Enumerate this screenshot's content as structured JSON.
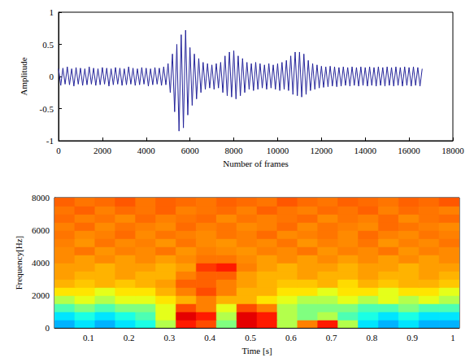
{
  "chart_data": [
    {
      "type": "line",
      "x_label": "Number of frames",
      "y_label": "Amplitude",
      "color": "#24249a",
      "xlim": [
        0,
        18000
      ],
      "xticks": [
        0,
        2000,
        4000,
        6000,
        8000,
        10000,
        12000,
        14000,
        16000,
        18000
      ],
      "ylim": [
        -1,
        1
      ],
      "yticks": [
        -1,
        -0.5,
        0,
        0.5,
        1
      ],
      "x": [
        0,
        100,
        200,
        300,
        400,
        500,
        600,
        700,
        800,
        900,
        1000,
        1100,
        1200,
        1300,
        1400,
        1500,
        1600,
        1700,
        1800,
        1900,
        2000,
        2100,
        2200,
        2300,
        2400,
        2500,
        2600,
        2700,
        2800,
        2900,
        3000,
        3100,
        3200,
        3300,
        3400,
        3500,
        3600,
        3700,
        3800,
        3900,
        4000,
        4100,
        4200,
        4300,
        4400,
        4500,
        4600,
        4700,
        4800,
        4900,
        5000,
        5100,
        5200,
        5300,
        5400,
        5500,
        5600,
        5700,
        5800,
        5900,
        6000,
        6100,
        6200,
        6300,
        6400,
        6500,
        6600,
        6700,
        6800,
        6900,
        7000,
        7100,
        7200,
        7300,
        7400,
        7500,
        7600,
        7700,
        7800,
        7900,
        8000,
        8100,
        8200,
        8300,
        8400,
        8500,
        8600,
        8700,
        8800,
        8900,
        9000,
        9100,
        9200,
        9300,
        9400,
        9500,
        9600,
        9700,
        9800,
        9900,
        10000,
        10100,
        10200,
        10300,
        10400,
        10500,
        10600,
        10700,
        10800,
        10900,
        11000,
        11100,
        11200,
        11300,
        11400,
        11500,
        11600,
        11700,
        11800,
        11900,
        12000,
        12100,
        12200,
        12300,
        12400,
        12500,
        12600,
        12700,
        12800,
        12900,
        13000,
        13100,
        13200,
        13300,
        13400,
        13500,
        13600,
        13700,
        13800,
        13900,
        14000,
        14100,
        14200,
        14300,
        14400,
        14500,
        14600,
        14700,
        14800,
        14900,
        15000,
        15100,
        15200,
        15300,
        15400,
        15500,
        15600,
        15700,
        15800,
        15900,
        16000,
        16100,
        16200,
        16300,
        16400,
        16500,
        16600
      ],
      "values": [
        0.12,
        -0.14,
        0.13,
        -0.12,
        0.15,
        -0.13,
        0.12,
        -0.15,
        0.14,
        -0.12,
        0.13,
        -0.14,
        0.12,
        -0.13,
        0.15,
        -0.12,
        0.13,
        -0.14,
        0.12,
        -0.13,
        0.14,
        -0.12,
        0.13,
        -0.15,
        0.12,
        -0.13,
        0.14,
        -0.12,
        0.13,
        -0.14,
        0.12,
        -0.13,
        0.15,
        -0.12,
        0.13,
        -0.14,
        0.12,
        -0.13,
        0.14,
        -0.12,
        0.13,
        -0.15,
        0.12,
        -0.13,
        0.14,
        -0.12,
        0.13,
        -0.14,
        0.15,
        -0.13,
        0.2,
        -0.25,
        0.35,
        -0.55,
        0.5,
        -0.85,
        0.65,
        -0.8,
        0.72,
        -0.6,
        0.45,
        -0.45,
        0.35,
        -0.35,
        0.28,
        -0.25,
        0.22,
        -0.2,
        0.2,
        -0.18,
        0.18,
        -0.2,
        0.2,
        -0.18,
        0.22,
        -0.25,
        0.32,
        -0.3,
        0.38,
        -0.32,
        0.4,
        -0.35,
        0.32,
        -0.3,
        0.28,
        -0.25,
        0.22,
        -0.2,
        0.2,
        -0.22,
        0.22,
        -0.2,
        0.2,
        -0.18,
        0.18,
        -0.2,
        0.2,
        -0.18,
        0.18,
        -0.2,
        0.2,
        -0.22,
        0.22,
        -0.2,
        0.25,
        -0.22,
        0.32,
        -0.28,
        0.38,
        -0.3,
        0.38,
        -0.32,
        0.35,
        -0.28,
        0.25,
        -0.22,
        0.2,
        -0.2,
        0.18,
        -0.18,
        0.16,
        -0.17,
        0.15,
        -0.16,
        0.16,
        -0.15,
        0.15,
        -0.16,
        0.14,
        -0.15,
        0.15,
        -0.14,
        0.14,
        -0.15,
        0.15,
        -0.14,
        0.14,
        -0.15,
        0.15,
        -0.14,
        0.14,
        -0.15,
        0.15,
        -0.14,
        0.14,
        -0.15,
        0.15,
        -0.14,
        0.14,
        -0.15,
        0.15,
        -0.14,
        0.14,
        -0.15,
        0.15,
        -0.14,
        0.14,
        -0.15,
        0.15,
        -0.14,
        0.14,
        -0.15,
        0.15,
        -0.14,
        0.14,
        -0.15,
        0.12
      ]
    },
    {
      "type": "heatmap",
      "x_label": "Time [s]",
      "y_label": "Frequency[Hz]",
      "color": "jet",
      "xlim": [
        0.016,
        1.016
      ],
      "xticks": [
        0.1,
        0.2,
        0.3,
        0.4,
        0.5,
        0.6,
        0.7,
        0.8,
        0.9,
        1
      ],
      "ylim": [
        0,
        8000
      ],
      "yticks": [
        0,
        2000,
        4000,
        6000,
        8000
      ],
      "zlim": [
        0,
        1
      ],
      "x_bins": [
        0.016,
        0.066,
        0.116,
        0.166,
        0.216,
        0.266,
        0.316,
        0.366,
        0.416,
        0.466,
        0.516,
        0.566,
        0.616,
        0.666,
        0.716,
        0.766,
        0.816,
        0.866,
        0.916,
        0.966,
        1.016
      ],
      "y_bins": [
        0,
        500,
        1000,
        1500,
        2000,
        2500,
        3000,
        3500,
        4000,
        4500,
        5000,
        5500,
        6000,
        6500,
        7000,
        7500,
        8000
      ],
      "z": [
        [
          0.3,
          0.35,
          0.3,
          0.35,
          0.4,
          0.55,
          0.85,
          0.8,
          0.5,
          0.9,
          0.85,
          0.55,
          0.75,
          0.85,
          0.55,
          0.35,
          0.3,
          0.35,
          0.3,
          0.3
        ],
        [
          0.35,
          0.4,
          0.35,
          0.4,
          0.45,
          0.6,
          0.9,
          0.85,
          0.55,
          0.9,
          0.85,
          0.55,
          0.5,
          0.55,
          0.45,
          0.4,
          0.35,
          0.4,
          0.35,
          0.35
        ],
        [
          0.45,
          0.5,
          0.45,
          0.5,
          0.5,
          0.6,
          0.8,
          0.75,
          0.6,
          0.8,
          0.75,
          0.55,
          0.5,
          0.5,
          0.5,
          0.45,
          0.45,
          0.5,
          0.45,
          0.45
        ],
        [
          0.55,
          0.6,
          0.55,
          0.6,
          0.6,
          0.65,
          0.7,
          0.75,
          0.7,
          0.7,
          0.65,
          0.6,
          0.55,
          0.55,
          0.6,
          0.55,
          0.6,
          0.55,
          0.6,
          0.55
        ],
        [
          0.65,
          0.65,
          0.6,
          0.65,
          0.65,
          0.7,
          0.75,
          0.8,
          0.75,
          0.7,
          0.7,
          0.65,
          0.65,
          0.6,
          0.65,
          0.65,
          0.6,
          0.65,
          0.65,
          0.6
        ],
        [
          0.7,
          0.68,
          0.7,
          0.68,
          0.7,
          0.72,
          0.78,
          0.78,
          0.75,
          0.72,
          0.7,
          0.68,
          0.68,
          0.7,
          0.66,
          0.7,
          0.68,
          0.7,
          0.7,
          0.68
        ],
        [
          0.72,
          0.7,
          0.7,
          0.72,
          0.7,
          0.7,
          0.75,
          0.78,
          0.78,
          0.72,
          0.7,
          0.7,
          0.72,
          0.7,
          0.7,
          0.72,
          0.7,
          0.7,
          0.72,
          0.7
        ],
        [
          0.72,
          0.72,
          0.7,
          0.72,
          0.72,
          0.7,
          0.72,
          0.82,
          0.85,
          0.75,
          0.72,
          0.7,
          0.72,
          0.72,
          0.7,
          0.72,
          0.72,
          0.7,
          0.72,
          0.72
        ],
        [
          0.74,
          0.72,
          0.74,
          0.72,
          0.74,
          0.72,
          0.74,
          0.76,
          0.76,
          0.74,
          0.72,
          0.74,
          0.72,
          0.74,
          0.72,
          0.74,
          0.72,
          0.74,
          0.72,
          0.74
        ],
        [
          0.74,
          0.76,
          0.73,
          0.75,
          0.74,
          0.76,
          0.73,
          0.75,
          0.74,
          0.73,
          0.75,
          0.74,
          0.76,
          0.73,
          0.75,
          0.74,
          0.76,
          0.73,
          0.75,
          0.74
        ],
        [
          0.75,
          0.73,
          0.76,
          0.74,
          0.75,
          0.73,
          0.76,
          0.74,
          0.73,
          0.75,
          0.74,
          0.76,
          0.73,
          0.75,
          0.74,
          0.76,
          0.73,
          0.75,
          0.74,
          0.76
        ],
        [
          0.76,
          0.74,
          0.75,
          0.77,
          0.74,
          0.76,
          0.75,
          0.74,
          0.76,
          0.75,
          0.77,
          0.74,
          0.75,
          0.76,
          0.74,
          0.77,
          0.75,
          0.74,
          0.76,
          0.75
        ],
        [
          0.75,
          0.77,
          0.74,
          0.76,
          0.75,
          0.74,
          0.77,
          0.75,
          0.76,
          0.74,
          0.75,
          0.77,
          0.74,
          0.76,
          0.75,
          0.74,
          0.77,
          0.76,
          0.75,
          0.74
        ],
        [
          0.77,
          0.75,
          0.76,
          0.74,
          0.77,
          0.75,
          0.76,
          0.77,
          0.74,
          0.76,
          0.75,
          0.76,
          0.77,
          0.74,
          0.76,
          0.75,
          0.77,
          0.74,
          0.76,
          0.77
        ],
        [
          0.76,
          0.78,
          0.75,
          0.77,
          0.76,
          0.78,
          0.75,
          0.76,
          0.77,
          0.75,
          0.78,
          0.76,
          0.75,
          0.77,
          0.76,
          0.78,
          0.75,
          0.77,
          0.76,
          0.75
        ],
        [
          0.78,
          0.76,
          0.77,
          0.79,
          0.76,
          0.78,
          0.77,
          0.76,
          0.78,
          0.77,
          0.76,
          0.79,
          0.77,
          0.76,
          0.78,
          0.77,
          0.76,
          0.78,
          0.77,
          0.79
        ]
      ]
    }
  ]
}
